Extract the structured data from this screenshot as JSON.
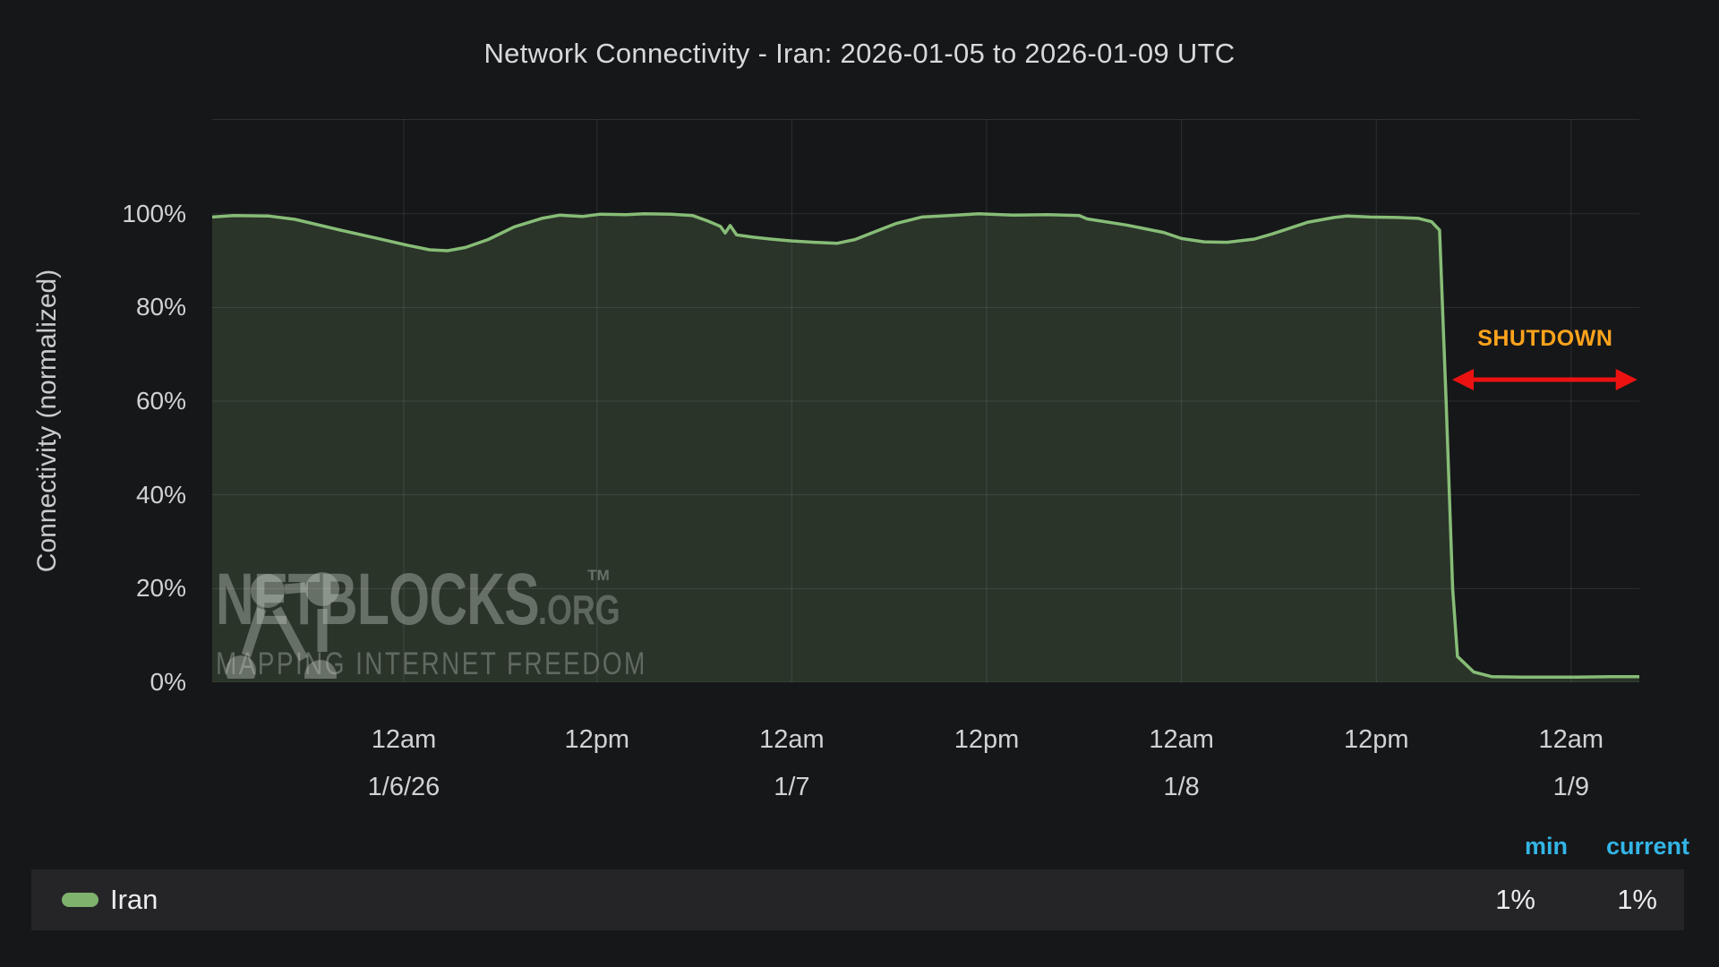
{
  "header": {
    "title": "Network Connectivity - Iran: 2026-01-05 to 2026-01-09 UTC"
  },
  "watermark": {
    "brand": "NETBLOCKS",
    "tm": "TM",
    "suffix": ".ORG",
    "tagline": "MAPPING INTERNET FREEDOM"
  },
  "annotation": {
    "label": "SHUTDOWN",
    "label_color": "#ffa41c",
    "arrow_color": "#ec1212",
    "start_hour": 76.4,
    "end_hour": 87.8,
    "label_pct": 73,
    "arrow_pct": 64.5
  },
  "legend": {
    "headers": {
      "min": "min",
      "current": "current"
    },
    "header_color": "#33b5e5",
    "series": [
      {
        "label": "Iran",
        "swatch_color": "#7eb26d",
        "min": "1%",
        "current": "1%"
      }
    ]
  },
  "chart_data": {
    "type": "area",
    "title": "Network Connectivity - Iran: 2026-01-05 to 2026-01-09 UTC",
    "xlabel": "",
    "ylabel": "Connectivity (normalized)",
    "x_start": "2026-01-05 12:00 UTC",
    "x_total_hours": 87.9,
    "ylim": [
      0,
      120
    ],
    "grid": true,
    "legend_position": "bottom",
    "grid_color": "rgba(255,255,255,0.10)",
    "yticks": [
      {
        "pct": 0,
        "label": "0%"
      },
      {
        "pct": 20,
        "label": "20%"
      },
      {
        "pct": 40,
        "label": "40%"
      },
      {
        "pct": 60,
        "label": "60%"
      },
      {
        "pct": 80,
        "label": "80%"
      },
      {
        "pct": 100,
        "label": "100%"
      }
    ],
    "xticks": [
      {
        "hour": 11.8,
        "label": "12am",
        "date": "1/6/26"
      },
      {
        "hour": 23.7,
        "label": "12pm",
        "date": ""
      },
      {
        "hour": 35.7,
        "label": "12am",
        "date": "1/7"
      },
      {
        "hour": 47.7,
        "label": "12pm",
        "date": ""
      },
      {
        "hour": 59.7,
        "label": "12am",
        "date": "1/8"
      },
      {
        "hour": 71.7,
        "label": "12pm",
        "date": ""
      },
      {
        "hour": 83.7,
        "label": "12am",
        "date": "1/9"
      }
    ],
    "series": [
      {
        "name": "Iran",
        "color": "#87bd77",
        "fill_color": "rgba(134,189,119,0.18)",
        "min": "1%",
        "current": "1%",
        "points": [
          [
            0,
            99.3
          ],
          [
            1.3,
            99.6
          ],
          [
            3.5,
            99.5
          ],
          [
            5.1,
            98.8
          ],
          [
            7.9,
            96.5
          ],
          [
            10.1,
            94.8
          ],
          [
            12,
            93.3
          ],
          [
            13.4,
            92.3
          ],
          [
            14.5,
            92.1
          ],
          [
            15.6,
            92.8
          ],
          [
            17,
            94.5
          ],
          [
            18.6,
            97.2
          ],
          [
            20.3,
            99
          ],
          [
            21.4,
            99.7
          ],
          [
            22.8,
            99.4
          ],
          [
            23.9,
            99.9
          ],
          [
            25.5,
            99.8
          ],
          [
            26.6,
            100
          ],
          [
            28.3,
            99.9
          ],
          [
            29.6,
            99.6
          ],
          [
            30.5,
            98.5
          ],
          [
            31.3,
            97.3
          ],
          [
            31.6,
            95.9
          ],
          [
            31.9,
            97.5
          ],
          [
            32.3,
            95.5
          ],
          [
            33.3,
            95
          ],
          [
            34.4,
            94.6
          ],
          [
            35.7,
            94.2
          ],
          [
            37.1,
            93.9
          ],
          [
            38.5,
            93.7
          ],
          [
            39.6,
            94.5
          ],
          [
            40.7,
            96
          ],
          [
            42.1,
            97.9
          ],
          [
            43.7,
            99.3
          ],
          [
            45.4,
            99.6
          ],
          [
            47.2,
            100
          ],
          [
            49.3,
            99.7
          ],
          [
            51.5,
            99.8
          ],
          [
            53.4,
            99.6
          ],
          [
            53.9,
            98.9
          ],
          [
            56.3,
            97.6
          ],
          [
            58.6,
            96
          ],
          [
            59.7,
            94.7
          ],
          [
            61.1,
            94
          ],
          [
            62.5,
            93.9
          ],
          [
            64.2,
            94.6
          ],
          [
            65.3,
            95.7
          ],
          [
            67.5,
            98.2
          ],
          [
            69.1,
            99.2
          ],
          [
            69.9,
            99.5
          ],
          [
            71.3,
            99.3
          ],
          [
            73,
            99.2
          ],
          [
            74.3,
            99
          ],
          [
            75.1,
            98.3
          ],
          [
            75.6,
            96.5
          ],
          [
            76.0,
            60
          ],
          [
            76.4,
            20
          ],
          [
            76.7,
            5.5
          ],
          [
            77.7,
            2.2
          ],
          [
            78.8,
            1.2
          ],
          [
            80.7,
            1.1
          ],
          [
            84,
            1.1
          ],
          [
            86.2,
            1.2
          ],
          [
            87.9,
            1.2
          ]
        ]
      }
    ]
  }
}
